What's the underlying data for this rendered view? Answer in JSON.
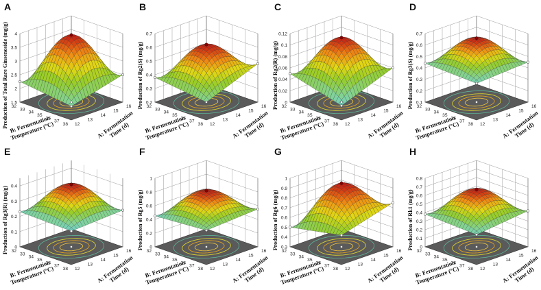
{
  "figure": {
    "panels": [
      {
        "id": "A",
        "letter": "A",
        "zlabel": "Production of Total Rare Ginsenoside (mg/g)",
        "zticks": [
          "1.5",
          "2",
          "2.5",
          "3",
          "3.5",
          "4"
        ],
        "zmin": 1.5,
        "zmax": 4,
        "peak": 3.95,
        "corners": [
          2.0,
          2.5,
          1.55,
          2.25
        ],
        "base": 2.05
      },
      {
        "id": "B",
        "letter": "B",
        "zlabel": "Production of Rg2(S) (mg/g)",
        "zticks": [
          "0.2",
          "0.3",
          "0.4",
          "0.5",
          "0.6",
          "0.7"
        ],
        "zmin": 0.2,
        "zmax": 0.7,
        "peak": 0.62,
        "corners": [
          0.33,
          0.48,
          0.25,
          0.38
        ],
        "base": 0.4
      },
      {
        "id": "C",
        "letter": "C",
        "zlabel": "Production of Rg2(R) (mg/g)",
        "zticks": [
          "0",
          "0.02",
          "0.04",
          "0.06",
          "0.08",
          "0.1",
          "0.12"
        ],
        "zmin": 0,
        "zmax": 0.12,
        "peak": 0.113,
        "corners": [
          0.025,
          0.06,
          0.015,
          0.05
        ],
        "base": 0.035
      },
      {
        "id": "D",
        "letter": "D",
        "zlabel": "Production of Rg3(S) (mg/g)",
        "zticks": [
          "0.1",
          "0.2",
          "0.3",
          "0.4",
          "0.5",
          "0.6",
          "0.7"
        ],
        "zmin": 0.1,
        "zmax": 0.7,
        "peak": 0.66,
        "corners": [
          0.42,
          0.45,
          0.38,
          0.44
        ],
        "base": 0.15
      },
      {
        "id": "E",
        "letter": "E",
        "zlabel": "Production of Rg3(R) (mg/g)",
        "zticks": [
          "0",
          "0.1",
          "0.2",
          "0.3",
          "0.4"
        ],
        "zmin": 0,
        "zmax": 0.45,
        "peak": 0.41,
        "corners": [
          0.22,
          0.24,
          0.2,
          0.23
        ],
        "base": 0.05
      },
      {
        "id": "F",
        "letter": "F",
        "zlabel": "Production of Rg5 (mg/g)",
        "zticks": [
          "0",
          "0.2",
          "0.4",
          "0.6",
          "0.8",
          "1"
        ],
        "zmin": 0,
        "zmax": 1,
        "peak": 0.82,
        "corners": [
          0.5,
          0.55,
          0.4,
          0.45
        ],
        "base": 0.05
      },
      {
        "id": "G",
        "letter": "G",
        "zlabel": "Production of Rg6 (mg/g)",
        "zticks": [
          "0.3",
          "0.4",
          "0.5",
          "0.6",
          "0.7",
          "0.8",
          "0.9",
          "1"
        ],
        "zmin": 0.3,
        "zmax": 1,
        "peak": 0.95,
        "corners": [
          0.6,
          0.75,
          0.35,
          0.5
        ],
        "base": 0.55
      },
      {
        "id": "H",
        "letter": "H",
        "zlabel": "Production of Rk1 (mg/g)",
        "zticks": [
          "0",
          "0.1",
          "0.2",
          "0.3",
          "0.4",
          "0.5",
          "0.6",
          "0.7",
          "0.8"
        ],
        "zmin": 0,
        "zmax": 0.8,
        "peak": 0.67,
        "corners": [
          0.35,
          0.42,
          0.3,
          0.38
        ],
        "base": 0.3
      }
    ],
    "axis_b_label": [
      "B: Fermentation",
      "Temperature (°C)"
    ],
    "axis_a_label": [
      "A: Fermentation",
      "Time (d)"
    ],
    "b_ticks": [
      "32",
      "33",
      "34",
      "35",
      "36",
      "37",
      "38"
    ],
    "a_ticks": [
      "12",
      "13",
      "14",
      "15",
      "16"
    ]
  },
  "chart_data": {
    "type": "surface3d",
    "x_variable": "A: Fermentation Time (d)",
    "y_variable": "B: Fermentation Temperature (°C)",
    "x_range": [
      12,
      16
    ],
    "y_range": [
      32,
      38
    ],
    "surfaces": [
      {
        "panel": "A",
        "zlabel": "Production of Total Rare Ginsenoside (mg/g)",
        "z_range": [
          1.5,
          4
        ],
        "max_value": 3.95
      },
      {
        "panel": "B",
        "zlabel": "Production of Rg2(S) (mg/g)",
        "z_range": [
          0.2,
          0.7
        ],
        "max_value": 0.62
      },
      {
        "panel": "C",
        "zlabel": "Production of Rg2(R) (mg/g)",
        "z_range": [
          0,
          0.12
        ],
        "max_value": 0.113
      },
      {
        "panel": "D",
        "zlabel": "Production of Rg3(S) (mg/g)",
        "z_range": [
          0.1,
          0.7
        ],
        "max_value": 0.66
      },
      {
        "panel": "E",
        "zlabel": "Production of Rg3(R) (mg/g)",
        "z_range": [
          0,
          0.45
        ],
        "max_value": 0.41
      },
      {
        "panel": "F",
        "zlabel": "Production of Rg5 (mg/g)",
        "z_range": [
          0,
          1
        ],
        "max_value": 0.82
      },
      {
        "panel": "G",
        "zlabel": "Production of Rg6 (mg/g)",
        "z_range": [
          0.3,
          1
        ],
        "max_value": 0.95
      },
      {
        "panel": "H",
        "zlabel": "Production of Rk1 (mg/g)",
        "z_range": [
          0,
          0.8
        ],
        "max_value": 0.67
      }
    ]
  }
}
